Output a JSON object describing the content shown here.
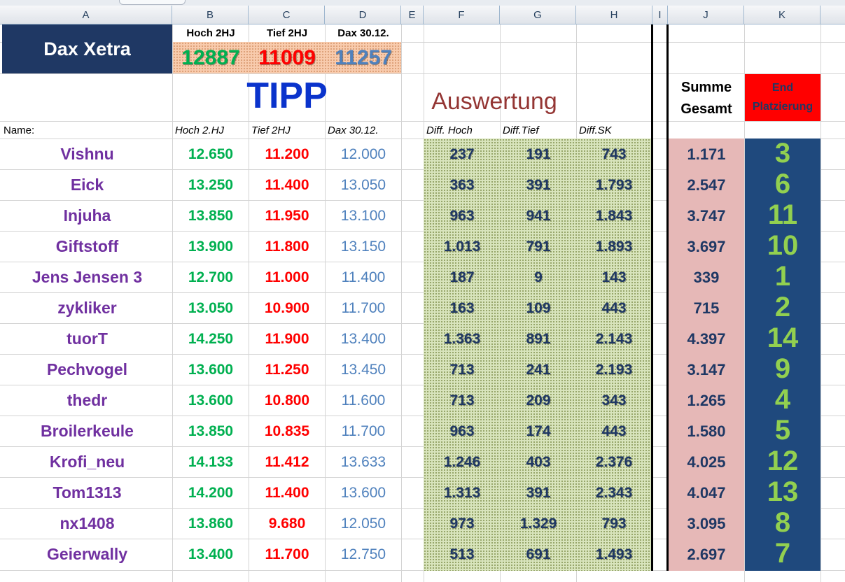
{
  "columns": [
    "A",
    "B",
    "C",
    "D",
    "E",
    "F",
    "G",
    "H",
    "I",
    "J",
    "K"
  ],
  "header": {
    "dax_title": "Dax Xetra",
    "hoch_label": "Hoch 2HJ",
    "tief_label": "Tief 2HJ",
    "dax_label": "Dax 30.12.",
    "hoch_value": "12887",
    "tief_value": "11009",
    "dax_value": "11257",
    "tipp": "TIPP",
    "auswertung": "Auswertung",
    "summe_line1": "Summe",
    "summe_line2": "Gesamt",
    "end_line1": "End",
    "end_line2": "Platzierung"
  },
  "subheaders": {
    "name": "Name:",
    "hoch": "Hoch 2.HJ",
    "tief": "Tief 2HJ",
    "dax": "Dax 30.12.",
    "diff_hoch": "Diff. Hoch",
    "diff_tief": "Diff.Tief",
    "diff_sk": "Diff.SK"
  },
  "rows": [
    {
      "name": "Vishnu",
      "hoch": "12.650",
      "tief": "11.200",
      "dax": "12.000",
      "dh": "237",
      "dt": "191",
      "dsk": "743",
      "sum": "1.171",
      "rank": "3"
    },
    {
      "name": "Eick",
      "hoch": "13.250",
      "tief": "11.400",
      "dax": "13.050",
      "dh": "363",
      "dt": "391",
      "dsk": "1.793",
      "sum": "2.547",
      "rank": "6"
    },
    {
      "name": "Injuha",
      "hoch": "13.850",
      "tief": "11.950",
      "dax": "13.100",
      "dh": "963",
      "dt": "941",
      "dsk": "1.843",
      "sum": "3.747",
      "rank": "11"
    },
    {
      "name": "Giftstoff",
      "hoch": "13.900",
      "tief": "11.800",
      "dax": "13.150",
      "dh": "1.013",
      "dt": "791",
      "dsk": "1.893",
      "sum": "3.697",
      "rank": "10"
    },
    {
      "name": "Jens Jensen 3",
      "hoch": "12.700",
      "tief": "11.000",
      "dax": "11.400",
      "dh": "187",
      "dt": "9",
      "dsk": "143",
      "sum": "339",
      "rank": "1"
    },
    {
      "name": "zykliker",
      "hoch": "13.050",
      "tief": "10.900",
      "dax": "11.700",
      "dh": "163",
      "dt": "109",
      "dsk": "443",
      "sum": "715",
      "rank": "2"
    },
    {
      "name": "tuorT",
      "hoch": "14.250",
      "tief": "11.900",
      "dax": "13.400",
      "dh": "1.363",
      "dt": "891",
      "dsk": "2.143",
      "sum": "4.397",
      "rank": "14"
    },
    {
      "name": "Pechvogel",
      "hoch": "13.600",
      "tief": "11.250",
      "dax": "13.450",
      "dh": "713",
      "dt": "241",
      "dsk": "2.193",
      "sum": "3.147",
      "rank": "9"
    },
    {
      "name": "thedr",
      "hoch": "13.600",
      "tief": "10.800",
      "dax": "11.600",
      "dh": "713",
      "dt": "209",
      "dsk": "343",
      "sum": "1.265",
      "rank": "4"
    },
    {
      "name": "Broilerkeule",
      "hoch": "13.850",
      "tief": "10.835",
      "dax": "11.700",
      "dh": "963",
      "dt": "174",
      "dsk": "443",
      "sum": "1.580",
      "rank": "5"
    },
    {
      "name": "Krofi_neu",
      "hoch": "14.133",
      "tief": "11.412",
      "dax": "13.633",
      "dh": "1.246",
      "dt": "403",
      "dsk": "2.376",
      "sum": "4.025",
      "rank": "12"
    },
    {
      "name": "Tom1313",
      "hoch": "14.200",
      "tief": "11.400",
      "dax": "13.600",
      "dh": "1.313",
      "dt": "391",
      "dsk": "2.343",
      "sum": "4.047",
      "rank": "13"
    },
    {
      "name": "nx1408",
      "hoch": "13.860",
      "tief": "9.680",
      "dax": "12.050",
      "dh": "973",
      "dt": "1.329",
      "dsk": "793",
      "sum": "3.095",
      "rank": "8"
    },
    {
      "name": "Geierwally",
      "hoch": "13.400",
      "tief": "11.700",
      "dax": "12.750",
      "dh": "513",
      "dt": "691",
      "dsk": "1.493",
      "sum": "2.697",
      "rank": "7"
    }
  ]
}
